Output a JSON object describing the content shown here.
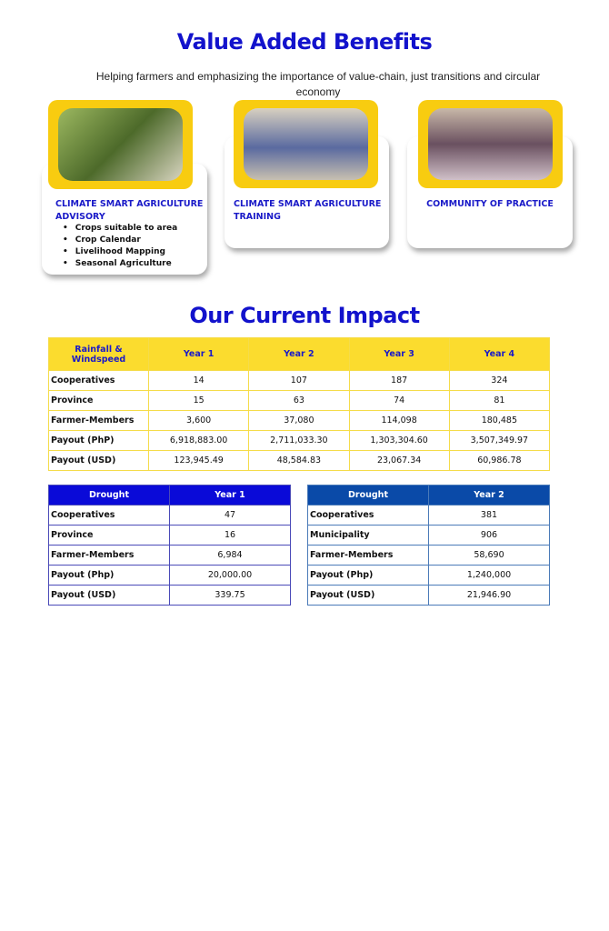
{
  "benefits": {
    "title": "Value Added Benefits",
    "subtitle": "Helping farmers and emphasizing the importance of value-chain, just transitions and circular economy",
    "cards": [
      {
        "title": "CLIMATE SMART AGRICULTURE ADVISORY",
        "items": [
          "Crops suitable to area",
          "Crop Calendar",
          "Livelihood Mapping",
          "Seasonal Agriculture"
        ]
      },
      {
        "title": "CLIMATE SMART AGRICULTURE TRAINING"
      },
      {
        "title": "COMMUNITY OF PRACTICE"
      }
    ],
    "accent": "#f8cc10",
    "title_color": "#1212cc"
  },
  "impact": {
    "title": "Our Current Impact",
    "rainfall": {
      "headers": [
        "Rainfall & Windspeed",
        "Year 1",
        "Year 2",
        "Year 3",
        "Year 4"
      ],
      "rows": [
        [
          "Cooperatives",
          "14",
          "107",
          "187",
          "324"
        ],
        [
          "Province",
          "15",
          "63",
          "74",
          "81"
        ],
        [
          "Farmer-Members",
          "3,600",
          "37,080",
          "114,098",
          "180,485"
        ],
        [
          "Payout (PhP)",
          "6,918,883.00",
          "2,711,033.30",
          "1,303,304.60",
          "3,507,349.97"
        ],
        [
          "Payout (USD)",
          "123,945.49",
          "48,584.83",
          "23,067.34",
          "60,986.78"
        ]
      ]
    },
    "drought1": {
      "headers": [
        "Drought",
        "Year 1"
      ],
      "rows": [
        [
          "Cooperatives",
          "47"
        ],
        [
          "Province",
          "16"
        ],
        [
          "Farmer-Members",
          "6,984"
        ],
        [
          "Payout (Php)",
          "20,000.00"
        ],
        [
          "Payout (USD)",
          "339.75"
        ]
      ]
    },
    "drought2": {
      "headers": [
        "Drought",
        "Year 2"
      ],
      "rows": [
        [
          "Cooperatives",
          "381"
        ],
        [
          "Municipality",
          "906"
        ],
        [
          "Farmer-Members",
          "58,690"
        ],
        [
          "Payout (Php)",
          "1,240,000"
        ],
        [
          "Payout (USD)",
          "21,946.90"
        ]
      ]
    }
  }
}
